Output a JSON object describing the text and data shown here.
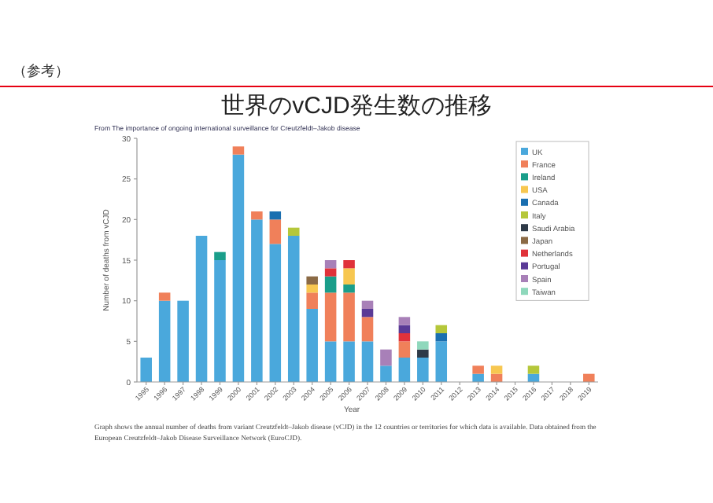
{
  "chart_data": {
    "type": "bar",
    "stacked": true,
    "title": "世界のvCJD発生数の推移",
    "subtitle": "From The importance of ongoing international surveillance for Creutzfeldt–Jakob disease",
    "xlabel": "Year",
    "ylabel": "Number of deaths from vCJD",
    "annotations": [
      "（参考）",
      "Graph shows the annual number of deaths from variant Creutzfeldt–Jakob disease (vCJD) in the 12 countries or territories for which data is available. Data obtained from the European Creutzfeldt–Jakob Disease Surveillance Network (EuroCJD)."
    ],
    "categories": [
      "1995",
      "1996",
      "1997",
      "1998",
      "1999",
      "2000",
      "2001",
      "2002",
      "2003",
      "2004",
      "2005",
      "2006",
      "2007",
      "2008",
      "2009",
      "2010",
      "2011",
      "2012",
      "2013",
      "2014",
      "2015",
      "2016",
      "2017",
      "2018",
      "2019"
    ],
    "series": [
      {
        "name": "UK",
        "color": "#4aa8dc",
        "values": [
          3,
          10,
          10,
          18,
          15,
          28,
          20,
          17,
          18,
          9,
          5,
          5,
          5,
          2,
          3,
          3,
          5,
          0,
          1,
          0,
          0,
          1,
          0,
          0,
          0
        ]
      },
      {
        "name": "France",
        "color": "#f0805a",
        "values": [
          0,
          1,
          0,
          0,
          0,
          1,
          1,
          3,
          0,
          2,
          6,
          6,
          3,
          0,
          2,
          0,
          0,
          0,
          1,
          1,
          0,
          0,
          0,
          0,
          1
        ]
      },
      {
        "name": "Ireland",
        "color": "#1a9e8a",
        "values": [
          0,
          0,
          0,
          0,
          1,
          0,
          0,
          0,
          0,
          0,
          2,
          1,
          0,
          0,
          0,
          0,
          0,
          0,
          0,
          0,
          0,
          0,
          0,
          0,
          0
        ]
      },
      {
        "name": "USA",
        "color": "#f7c750",
        "values": [
          0,
          0,
          0,
          0,
          0,
          0,
          0,
          0,
          0,
          1,
          0,
          2,
          0,
          0,
          0,
          0,
          0,
          0,
          0,
          1,
          0,
          0,
          0,
          0,
          0
        ]
      },
      {
        "name": "Canada",
        "color": "#1a6fb0",
        "values": [
          0,
          0,
          0,
          0,
          0,
          0,
          0,
          1,
          0,
          0,
          0,
          0,
          0,
          0,
          0,
          0,
          1,
          0,
          0,
          0,
          0,
          0,
          0,
          0,
          0
        ]
      },
      {
        "name": "Italy",
        "color": "#b5c73a",
        "values": [
          0,
          0,
          0,
          0,
          0,
          0,
          0,
          0,
          1,
          0,
          0,
          0,
          0,
          0,
          0,
          0,
          1,
          0,
          0,
          0,
          0,
          1,
          0,
          0,
          0
        ]
      },
      {
        "name": "Saudi Arabia",
        "color": "#2e3a48",
        "values": [
          0,
          0,
          0,
          0,
          0,
          0,
          0,
          0,
          0,
          0,
          0,
          0,
          0,
          0,
          0,
          1,
          0,
          0,
          0,
          0,
          0,
          0,
          0,
          0,
          0
        ]
      },
      {
        "name": "Japan",
        "color": "#8b6a45",
        "values": [
          0,
          0,
          0,
          0,
          0,
          0,
          0,
          0,
          0,
          1,
          0,
          0,
          0,
          0,
          0,
          0,
          0,
          0,
          0,
          0,
          0,
          0,
          0,
          0,
          0
        ]
      },
      {
        "name": "Netherlands",
        "color": "#e0323a",
        "values": [
          0,
          0,
          0,
          0,
          0,
          0,
          0,
          0,
          0,
          0,
          1,
          1,
          0,
          0,
          1,
          0,
          0,
          0,
          0,
          0,
          0,
          0,
          0,
          0,
          0
        ]
      },
      {
        "name": "Portugal",
        "color": "#5a3a96",
        "values": [
          0,
          0,
          0,
          0,
          0,
          0,
          0,
          0,
          0,
          0,
          0,
          0,
          1,
          0,
          1,
          0,
          0,
          0,
          0,
          0,
          0,
          0,
          0,
          0,
          0
        ]
      },
      {
        "name": "Spain",
        "color": "#a880b8",
        "values": [
          0,
          0,
          0,
          0,
          0,
          0,
          0,
          0,
          0,
          0,
          1,
          0,
          1,
          2,
          1,
          0,
          0,
          0,
          0,
          0,
          0,
          0,
          0,
          0,
          0
        ]
      },
      {
        "name": "Taiwan",
        "color": "#8fd8bc",
        "values": [
          0,
          0,
          0,
          0,
          0,
          0,
          0,
          0,
          0,
          0,
          0,
          0,
          0,
          0,
          0,
          1,
          0,
          0,
          0,
          0,
          0,
          0,
          0,
          0,
          0
        ]
      }
    ],
    "ylim": [
      0,
      30
    ],
    "yticks": [
      0,
      5,
      10,
      15,
      20,
      25,
      30
    ],
    "legend": "top right"
  }
}
